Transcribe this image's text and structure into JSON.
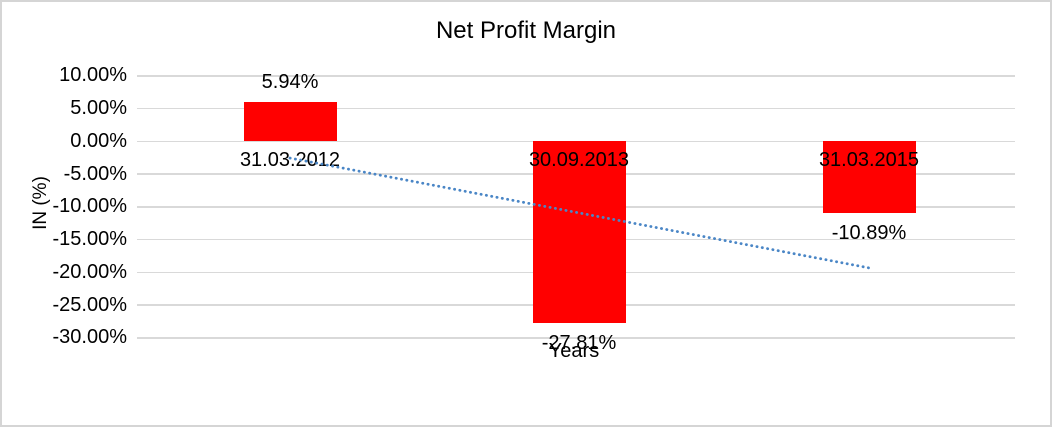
{
  "chart_data": {
    "type": "bar",
    "title": "Net Profit Margin",
    "xlabel": "Years",
    "ylabel": "IN (%)",
    "categories": [
      "31.03.2012",
      "30.09.2013",
      "31.03.2015"
    ],
    "values": [
      5.94,
      -27.81,
      -10.89
    ],
    "data_labels": [
      "5.94%",
      "-27.81%",
      "-10.89%"
    ],
    "ylim": [
      -30,
      10
    ],
    "ytick_values": [
      10,
      5,
      0,
      -5,
      -10,
      -15,
      -20,
      -25,
      -30
    ],
    "ytick_labels": [
      "10.00%",
      "5.00%",
      "0.00%",
      "-5.00%",
      "-10.00%",
      "-15.00%",
      "-20.00%",
      "-25.00%",
      "-30.00%"
    ],
    "grid": true,
    "legend": "none",
    "bar_color": "#ff0000",
    "gridline_color": "#d9d9d9",
    "text_color": "#000000",
    "trendline": {
      "type": "linear",
      "style": "dotted",
      "color": "#4a86c6",
      "start_value": -2.56,
      "end_value": -19.33
    }
  }
}
